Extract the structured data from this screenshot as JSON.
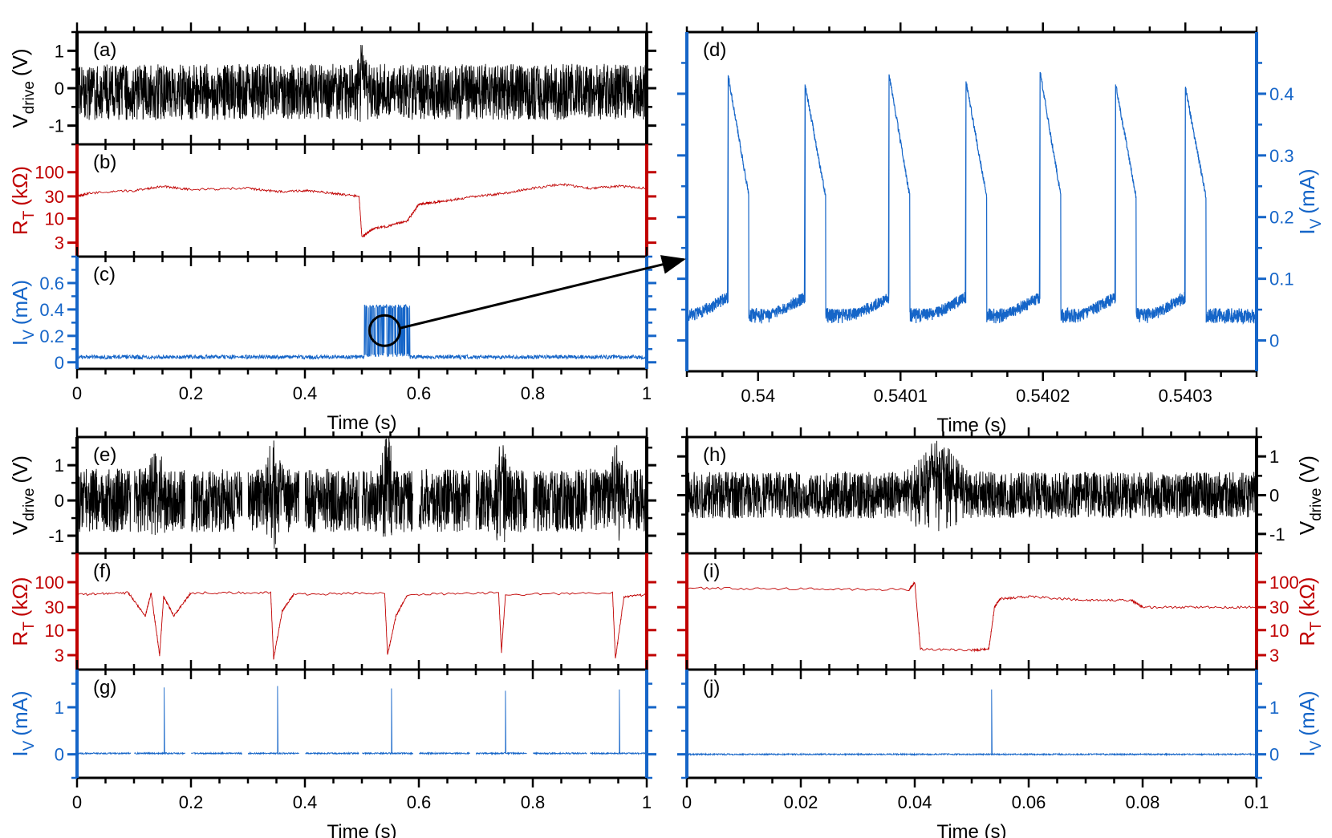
{
  "colors": {
    "black": "#000000",
    "red": "#c00000",
    "blue": "#1565c8"
  },
  "chart_data": [
    {
      "id": "a",
      "panel_label": "(a)",
      "type": "line",
      "color": "black",
      "ylabel": "V",
      "ylabel_sub": "drive",
      "ylabel_unit": "(V)",
      "xlim": [
        0,
        1
      ],
      "ylim": [
        -1.5,
        1.5
      ],
      "yticks": [
        {
          "v": 1,
          "label": "1"
        },
        {
          "v": 0,
          "label": "0"
        },
        {
          "v": -1,
          "label": "-1"
        }
      ],
      "series": [
        {
          "kind": "noise",
          "base": -0.1,
          "amp": 0.75,
          "bursts": [
            {
              "x": 0.5,
              "w": 0.006,
              "h": 0.9
            }
          ]
        }
      ]
    },
    {
      "id": "b",
      "panel_label": "(b)",
      "type": "line",
      "color": "red",
      "ylabel": "R",
      "ylabel_sub": "T",
      "ylabel_unit": "(kΩ)",
      "xlim": [
        0,
        1
      ],
      "ylim": [
        1.5,
        400
      ],
      "yscale": "log",
      "yticks": [
        {
          "v": 100,
          "label": "100"
        },
        {
          "v": 30,
          "label": "30"
        },
        {
          "v": 10,
          "label": "10"
        },
        {
          "v": 3,
          "label": "3"
        }
      ],
      "series": [
        {
          "kind": "steps",
          "points": [
            [
              0,
              30
            ],
            [
              0.02,
              35
            ],
            [
              0.1,
              40
            ],
            [
              0.15,
              50
            ],
            [
              0.2,
              42
            ],
            [
              0.3,
              45
            ],
            [
              0.35,
              38
            ],
            [
              0.4,
              40
            ],
            [
              0.45,
              35
            ],
            [
              0.495,
              30
            ],
            [
              0.5,
              4
            ],
            [
              0.52,
              6
            ],
            [
              0.55,
              7
            ],
            [
              0.58,
              9
            ],
            [
              0.6,
              20
            ],
            [
              0.62,
              22
            ],
            [
              0.65,
              24
            ],
            [
              0.7,
              30
            ],
            [
              0.75,
              35
            ],
            [
              0.8,
              45
            ],
            [
              0.85,
              55
            ],
            [
              0.9,
              45
            ],
            [
              0.95,
              50
            ],
            [
              1.0,
              45
            ]
          ]
        }
      ]
    },
    {
      "id": "c",
      "panel_label": "(c)",
      "type": "line",
      "color": "blue",
      "ylabel": "I",
      "ylabel_sub": "V",
      "ylabel_unit": "(mA)",
      "xlim": [
        0,
        1
      ],
      "ylim": [
        -0.05,
        0.8
      ],
      "yticks": [
        {
          "v": 0.6,
          "label": "0.6"
        },
        {
          "v": 0.4,
          "label": "0.4"
        },
        {
          "v": 0.2,
          "label": "0.2"
        },
        {
          "v": 0,
          "label": "0"
        }
      ],
      "series": [
        {
          "kind": "baseline",
          "base": 0.04,
          "amp": 0.015,
          "blocks": [
            {
              "x0": 0.504,
              "x1": 0.584,
              "low": 0.04,
              "high": 0.44
            }
          ]
        }
      ],
      "xticks": [
        0,
        0.2,
        0.4,
        0.6,
        0.8,
        1
      ],
      "xticklabels": [
        "0",
        "0.2",
        "0.4",
        "0.6",
        "0.8",
        "1"
      ],
      "xlabel": "Time (s)"
    },
    {
      "id": "d",
      "panel_label": "(d)",
      "type": "line",
      "color": "blue",
      "ylabel": "I",
      "ylabel_sub": "V",
      "ylabel_unit": "(mA)",
      "xlim": [
        0.53995,
        0.54035
      ],
      "ylim": [
        -0.05,
        0.5
      ],
      "yticks": [
        {
          "v": 0.4,
          "label": "0.4"
        },
        {
          "v": 0.3,
          "label": "0.3"
        },
        {
          "v": 0.2,
          "label": "0.2"
        },
        {
          "v": 0.1,
          "label": "0.1"
        },
        {
          "v": 0,
          "label": "0"
        }
      ],
      "series": [
        {
          "kind": "spikes_sawtooth",
          "peaks": [
            0.539979,
            0.540033,
            0.540092,
            0.540146,
            0.540198,
            0.540251,
            0.5403
          ],
          "peak_values": [
            0.43,
            0.415,
            0.43,
            0.42,
            0.435,
            0.415,
            0.41
          ],
          "base": 0.04
        }
      ],
      "xticks": [
        0.54,
        0.5401,
        0.5402,
        0.5403
      ],
      "xticklabels": [
        "0.54",
        "0.5401",
        "0.5402",
        "0.5403"
      ],
      "xlabel": "Time (s)"
    },
    {
      "id": "e",
      "panel_label": "(e)",
      "type": "line",
      "color": "black",
      "ylabel": "V",
      "ylabel_sub": "drive",
      "ylabel_unit": "(V)",
      "xlim": [
        0,
        1
      ],
      "ylim": [
        -1.5,
        1.8
      ],
      "yticks": [
        {
          "v": 1,
          "label": "1"
        },
        {
          "v": 0,
          "label": "0"
        },
        {
          "v": -1,
          "label": "-1"
        }
      ],
      "series": [
        {
          "kind": "noise",
          "base": 0.0,
          "amp": 0.9,
          "gaps": [
            [
              0.095,
              0.1
            ],
            [
              0.19,
              0.2
            ],
            [
              0.29,
              0.3
            ],
            [
              0.39,
              0.4
            ],
            [
              0.495,
              0.5
            ],
            [
              0.59,
              0.6
            ],
            [
              0.69,
              0.7
            ],
            [
              0.79,
              0.8
            ],
            [
              0.895,
              0.9
            ]
          ],
          "bursts": [
            {
              "x": 0.14,
              "w": 0.01,
              "h": 1.1
            },
            {
              "x": 0.345,
              "w": 0.01,
              "h": 1.2
            },
            {
              "x": 0.545,
              "w": 0.01,
              "h": 1.2
            },
            {
              "x": 0.745,
              "w": 0.01,
              "h": 1.1
            },
            {
              "x": 0.945,
              "w": 0.01,
              "h": 1.1
            }
          ]
        }
      ]
    },
    {
      "id": "f",
      "panel_label": "(f)",
      "type": "line",
      "color": "red",
      "ylabel": "R",
      "ylabel_sub": "T",
      "ylabel_unit": "(kΩ)",
      "xlim": [
        0,
        1
      ],
      "ylim": [
        1.5,
        400
      ],
      "yscale": "log",
      "yticks": [
        {
          "v": 100,
          "label": "100"
        },
        {
          "v": 30,
          "label": "30"
        },
        {
          "v": 10,
          "label": "10"
        },
        {
          "v": 3,
          "label": "3"
        }
      ],
      "series": [
        {
          "kind": "steps",
          "points": [
            [
              0,
              55
            ],
            [
              0.09,
              60
            ],
            [
              0.12,
              20
            ],
            [
              0.13,
              60
            ],
            [
              0.145,
              3
            ],
            [
              0.152,
              50
            ],
            [
              0.17,
              20
            ],
            [
              0.2,
              60
            ],
            [
              0.34,
              60
            ],
            [
              0.345,
              2.5
            ],
            [
              0.36,
              25
            ],
            [
              0.38,
              55
            ],
            [
              0.54,
              60
            ],
            [
              0.545,
              3
            ],
            [
              0.56,
              20
            ],
            [
              0.58,
              55
            ],
            [
              0.74,
              60
            ],
            [
              0.745,
              3.5
            ],
            [
              0.752,
              55
            ],
            [
              0.94,
              60
            ],
            [
              0.945,
              2.5
            ],
            [
              0.96,
              50
            ],
            [
              1.0,
              55
            ]
          ]
        }
      ]
    },
    {
      "id": "g",
      "panel_label": "(g)",
      "type": "line",
      "color": "blue",
      "ylabel": "I",
      "ylabel_sub": "V",
      "ylabel_unit": "(mA)",
      "xlim": [
        0,
        1
      ],
      "ylim": [
        -0.5,
        1.8
      ],
      "yticks": [
        {
          "v": 1,
          "label": "1"
        },
        {
          "v": 0,
          "label": "0"
        }
      ],
      "series": [
        {
          "kind": "spikes",
          "base": 0.02,
          "gaps": [
            [
              0.095,
              0.1
            ],
            [
              0.19,
              0.2
            ],
            [
              0.29,
              0.3
            ],
            [
              0.39,
              0.4
            ],
            [
              0.495,
              0.5
            ],
            [
              0.59,
              0.6
            ],
            [
              0.69,
              0.7
            ],
            [
              0.79,
              0.8
            ],
            [
              0.895,
              0.9
            ]
          ],
          "spikes": [
            {
              "x": 0.153,
              "h": 1.42
            },
            {
              "x": 0.352,
              "h": 1.45
            },
            {
              "x": 0.552,
              "h": 1.4
            },
            {
              "x": 0.752,
              "h": 1.35
            },
            {
              "x": 0.952,
              "h": 1.38
            }
          ]
        }
      ],
      "xticks": [
        0,
        0.2,
        0.4,
        0.6,
        0.8,
        1
      ],
      "xticklabels": [
        "0",
        "0.2",
        "0.4",
        "0.6",
        "0.8",
        "1"
      ],
      "xlabel": "Time (s)"
    },
    {
      "id": "h",
      "panel_label": "(h)",
      "type": "line",
      "color": "black",
      "ylabel": "V",
      "ylabel_sub": "drive",
      "ylabel_unit": "(V)",
      "xlim": [
        0,
        0.1
      ],
      "ylim": [
        -1.5,
        1.5
      ],
      "yticks": [
        {
          "v": 1,
          "label": "1"
        },
        {
          "v": 0,
          "label": "0"
        },
        {
          "v": -1,
          "label": "-1"
        }
      ],
      "series": [
        {
          "kind": "noise",
          "base": 0.0,
          "amp": 0.6,
          "bursts": [
            {
              "x": 0.044,
              "w": 0.004,
              "h": 0.9
            }
          ]
        }
      ]
    },
    {
      "id": "i",
      "panel_label": "(i)",
      "type": "line",
      "color": "red",
      "ylabel": "R",
      "ylabel_sub": "T",
      "ylabel_unit": "(kΩ)",
      "xlim": [
        0,
        0.1
      ],
      "ylim": [
        1.5,
        400
      ],
      "yscale": "log",
      "yticks": [
        {
          "v": 100,
          "label": "100"
        },
        {
          "v": 30,
          "label": "30"
        },
        {
          "v": 10,
          "label": "10"
        },
        {
          "v": 3,
          "label": "3"
        }
      ],
      "series": [
        {
          "kind": "steps",
          "points": [
            [
              0,
              75
            ],
            [
              0.02,
              72
            ],
            [
              0.039,
              70
            ],
            [
              0.04,
              100
            ],
            [
              0.041,
              4
            ],
            [
              0.05,
              3.8
            ],
            [
              0.053,
              4
            ],
            [
              0.054,
              30
            ],
            [
              0.055,
              45
            ],
            [
              0.06,
              50
            ],
            [
              0.07,
              42
            ],
            [
              0.078,
              42
            ],
            [
              0.08,
              30
            ],
            [
              0.09,
              30
            ],
            [
              0.1,
              30
            ]
          ]
        }
      ]
    },
    {
      "id": "j",
      "panel_label": "(j)",
      "type": "line",
      "color": "blue",
      "ylabel": "I",
      "ylabel_sub": "V",
      "ylabel_unit": "(mA)",
      "xlim": [
        0,
        0.1
      ],
      "ylim": [
        -0.5,
        1.8
      ],
      "yticks": [
        {
          "v": 1,
          "label": "1"
        },
        {
          "v": 0,
          "label": "0"
        }
      ],
      "series": [
        {
          "kind": "spikes",
          "base": 0.0,
          "spikes": [
            {
              "x": 0.0535,
              "h": 1.38
            }
          ]
        }
      ],
      "xticks": [
        0,
        0.02,
        0.04,
        0.06,
        0.08,
        0.1
      ],
      "xticklabels": [
        "0",
        "0.02",
        "0.04",
        "0.06",
        "0.08",
        "0.1"
      ],
      "xlabel": "Time (s)"
    }
  ]
}
